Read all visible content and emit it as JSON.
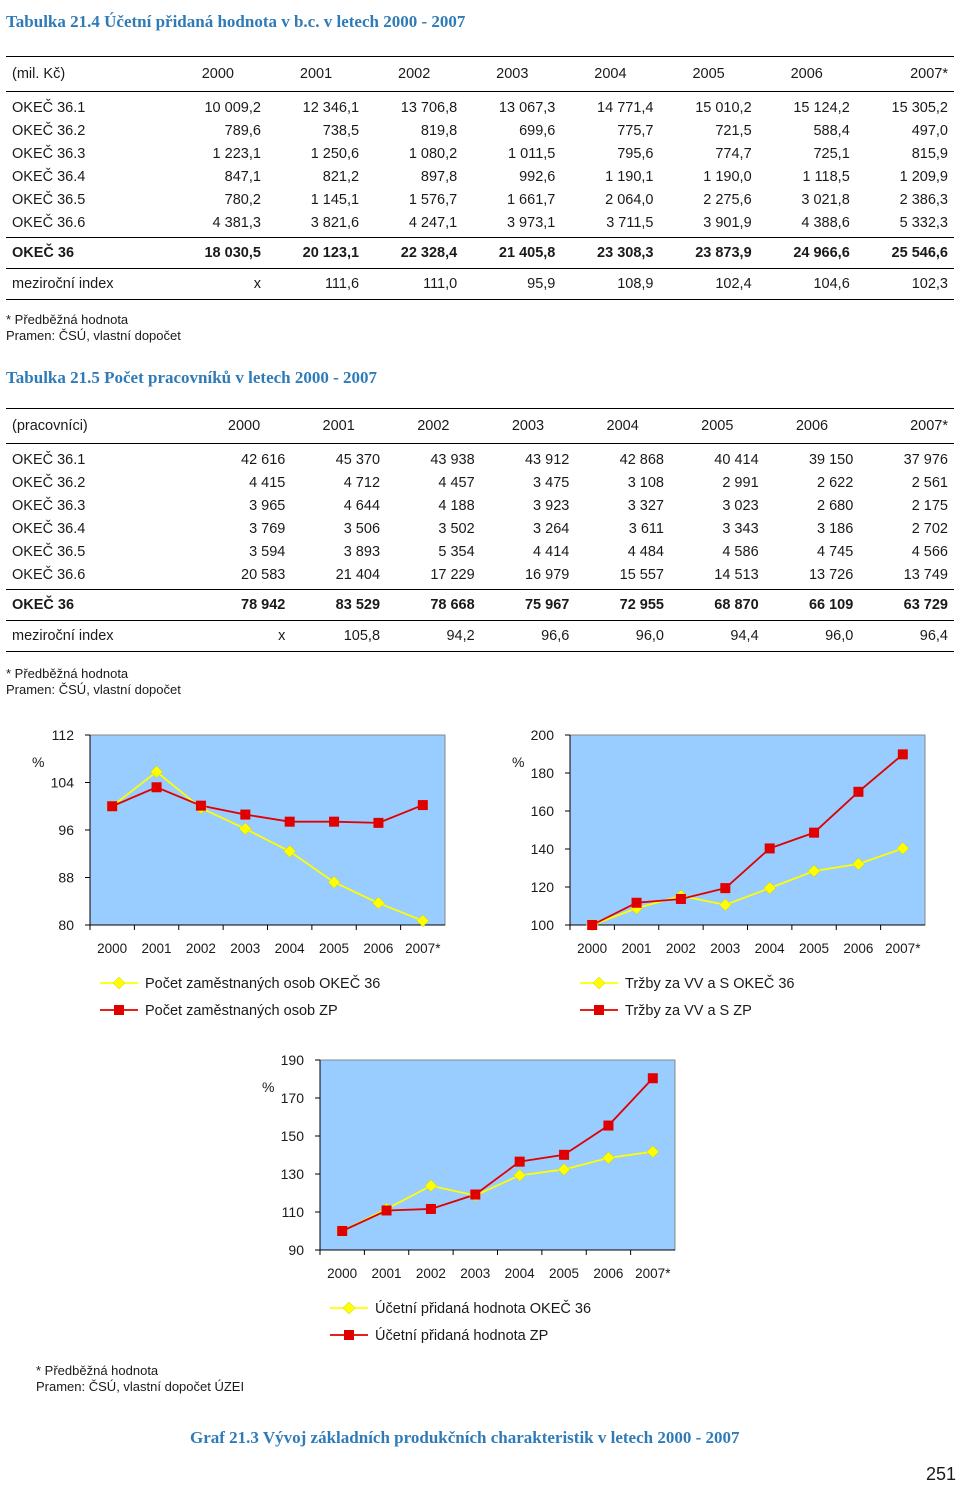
{
  "table1": {
    "title": "Tabulka 21.4 Účetní přidaná hodnota v b.c. v letech 2000 - 2007",
    "header": [
      "(mil. Kč)",
      "2000",
      "2001",
      "2002",
      "2003",
      "2004",
      "2005",
      "2006",
      "2007*"
    ],
    "rows": [
      [
        "OKEČ 36.1",
        "10 009,2",
        "12 346,1",
        "13 706,8",
        "13 067,3",
        "14 771,4",
        "15 010,2",
        "15 124,2",
        "15 305,2"
      ],
      [
        "OKEČ 36.2",
        "789,6",
        "738,5",
        "819,8",
        "699,6",
        "775,7",
        "721,5",
        "588,4",
        "497,0"
      ],
      [
        "OKEČ 36.3",
        "1 223,1",
        "1 250,6",
        "1 080,2",
        "1 011,5",
        "795,6",
        "774,7",
        "725,1",
        "815,9"
      ],
      [
        "OKEČ 36.4",
        "847,1",
        "821,2",
        "897,8",
        "992,6",
        "1 190,1",
        "1 190,0",
        "1 118,5",
        "1 209,9"
      ],
      [
        "OKEČ 36.5",
        "780,2",
        "1 145,1",
        "1 576,7",
        "1 661,7",
        "2 064,0",
        "2 275,6",
        "3 021,8",
        "2 386,3"
      ],
      [
        "OKEČ 36.6",
        "4 381,3",
        "3 821,6",
        "4 247,1",
        "3 973,1",
        "3 711,5",
        "3 901,9",
        "4 388,6",
        "5 332,3"
      ]
    ],
    "total": [
      "OKEČ 36",
      "18 030,5",
      "20 123,1",
      "22 328,4",
      "21 405,8",
      "23 308,3",
      "23 873,9",
      "24 966,6",
      "25 546,6"
    ],
    "index": [
      "meziroční index",
      "x",
      "111,6",
      "111,0",
      "95,9",
      "108,9",
      "102,4",
      "104,6",
      "102,3"
    ],
    "note1": "* Předběžná hodnota",
    "note2": "Pramen: ČSÚ, vlastní dopočet"
  },
  "table2": {
    "title": "Tabulka 21.5 Počet pracovníků v letech 2000 - 2007",
    "header": [
      "(pracovníci)",
      "2000",
      "2001",
      "2002",
      "2003",
      "2004",
      "2005",
      "2006",
      "2007*"
    ],
    "rows": [
      [
        "OKEČ 36.1",
        "42 616",
        "45 370",
        "43 938",
        "43 912",
        "42 868",
        "40 414",
        "39 150",
        "37 976"
      ],
      [
        "OKEČ 36.2",
        "4 415",
        "4 712",
        "4 457",
        "3 475",
        "3 108",
        "2 991",
        "2 622",
        "2 561"
      ],
      [
        "OKEČ 36.3",
        "3 965",
        "4 644",
        "4 188",
        "3 923",
        "3 327",
        "3 023",
        "2 680",
        "2 175"
      ],
      [
        "OKEČ 36.4",
        "3 769",
        "3 506",
        "3 502",
        "3 264",
        "3 611",
        "3 343",
        "3 186",
        "2 702"
      ],
      [
        "OKEČ 36.5",
        "3 594",
        "3 893",
        "5 354",
        "4 414",
        "4 484",
        "4 586",
        "4 745",
        "4 566"
      ],
      [
        "OKEČ 36.6",
        "20 583",
        "21 404",
        "17 229",
        "16 979",
        "15 557",
        "14 513",
        "13 726",
        "13 749"
      ]
    ],
    "total": [
      "OKEČ 36",
      "78 942",
      "83 529",
      "78 668",
      "75 967",
      "72 955",
      "68 870",
      "66 109",
      "63 729"
    ],
    "index": [
      "meziroční index",
      "x",
      "105,8",
      "94,2",
      "96,6",
      "96,0",
      "94,4",
      "96,0",
      "96,4"
    ],
    "note1": "* Předběžná hodnota",
    "note2": "Pramen: ČSÚ, vlastní dopočet"
  },
  "chart_data": [
    {
      "type": "line",
      "title": "",
      "ylabel": "%",
      "x": [
        "2000",
        "2001",
        "2002",
        "2003",
        "2004",
        "2005",
        "2006",
        "2007*"
      ],
      "ylim": [
        80,
        112
      ],
      "yticks": [
        80,
        88,
        96,
        104,
        112
      ],
      "grid": false,
      "legend": "bottom",
      "series": [
        {
          "name": "Počet zaměstnaných osob OKEČ 36",
          "color": "#ffff00",
          "marker": "diamond",
          "values": [
            100,
            105.8,
            99.7,
            96.2,
            92.4,
            87.2,
            83.7,
            80.7
          ]
        },
        {
          "name": "Počet zaměstnaných osob ZP",
          "color": "#e00000",
          "marker": "square",
          "values": [
            100,
            103.2,
            100.1,
            98.6,
            97.4,
            97.4,
            97.2,
            100.2
          ]
        }
      ]
    },
    {
      "type": "line",
      "title": "",
      "ylabel": "%",
      "x": [
        "2000",
        "2001",
        "2002",
        "2003",
        "2004",
        "2005",
        "2006",
        "2007*"
      ],
      "ylim": [
        100,
        200
      ],
      "yticks": [
        100,
        120,
        140,
        160,
        180,
        200
      ],
      "grid": false,
      "legend": "bottom",
      "series": [
        {
          "name": "Tržby za VV a S OKEČ 36",
          "color": "#ffff00",
          "marker": "diamond",
          "values": [
            100,
            108.8,
            115.3,
            110.6,
            119.4,
            128.4,
            132.1,
            140.3
          ]
        },
        {
          "name": "Tržby za VV a S ZP",
          "color": "#e00000",
          "marker": "square",
          "values": [
            100,
            111.7,
            113.7,
            119.4,
            140.3,
            148.6,
            170.1,
            189.8
          ]
        }
      ]
    },
    {
      "type": "line",
      "title": "",
      "ylabel": "%",
      "x": [
        "2000",
        "2001",
        "2002",
        "2003",
        "2004",
        "2005",
        "2006",
        "2007*"
      ],
      "ylim": [
        90,
        190
      ],
      "yticks": [
        90,
        110,
        130,
        150,
        170,
        190
      ],
      "grid": false,
      "legend": "bottom",
      "series": [
        {
          "name": "Účetní přidaná hodnota OKEČ 36",
          "color": "#ffff00",
          "marker": "diamond",
          "values": [
            100,
            111.6,
            123.8,
            118.7,
            129.3,
            132.4,
            138.5,
            141.7
          ]
        },
        {
          "name": "Účetní přidaná hodnota ZP",
          "color": "#e00000",
          "marker": "square",
          "values": [
            100,
            110.8,
            111.6,
            119.2,
            136.5,
            140.1,
            155.5,
            180.4
          ]
        }
      ]
    }
  ],
  "chart_legend_top_ylabel": "%",
  "bottom_note1": "* Předběžná hodnota",
  "bottom_note2": "Pramen: ČSÚ, vlastní dopočet ÚZEI",
  "footer_title": "Graf 21.3 Vývoj základních produkčních charakteristik v letech 2000 - 2007",
  "page_number": "251"
}
